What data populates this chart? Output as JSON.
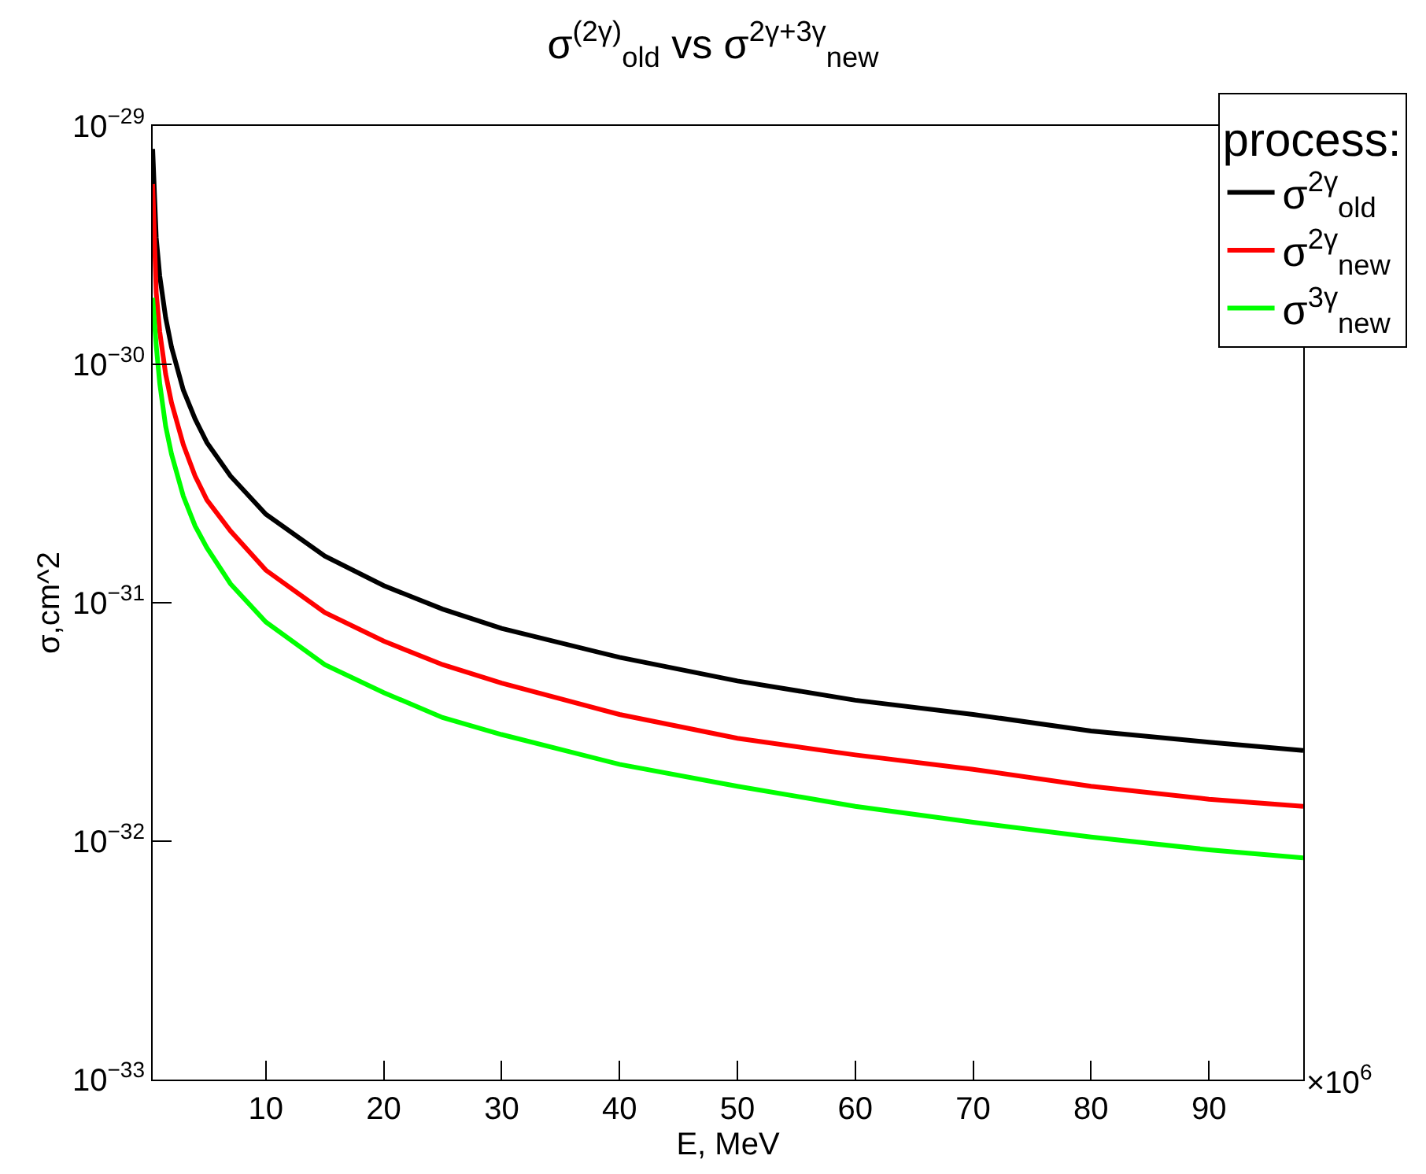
{
  "chart_data": {
    "type": "line",
    "title": "σ$^{(2γ)}$$_{old}$ vs σ$^{2γ+3γ}$$_{new}$",
    "xlabel": "E, MeV",
    "ylabel": "σ,cm^2",
    "legend_title": "process:",
    "annotations": [
      "×10$^{6}$"
    ],
    "x": [
      0.4,
      0.7,
      1,
      1.5,
      2,
      3,
      4,
      5,
      7,
      10,
      15,
      20,
      25,
      30,
      40,
      50,
      60,
      70,
      80,
      90,
      98
    ],
    "series": [
      {
        "name": "σ$^{2γ}$$_{old}$",
        "color": "#000000",
        "values": [
          8e-30,
          3.4e-30,
          2.35e-30,
          1.57e-30,
          1.18e-30,
          7.8e-31,
          5.9e-31,
          4.7e-31,
          3.4e-31,
          2.35e-31,
          1.57e-31,
          1.18e-31,
          9.4e-32,
          7.8e-32,
          5.9e-32,
          4.7e-32,
          3.9e-32,
          3.4e-32,
          2.9e-32,
          2.6e-32,
          2.4e-32
        ]
      },
      {
        "name": "σ$^{2γ}$$_{new}$",
        "color": "#ff0000",
        "values": [
          5.7e-30,
          2e-30,
          1.37e-30,
          9.1e-31,
          6.9e-31,
          4.6e-31,
          3.4e-31,
          2.7e-31,
          2e-31,
          1.37e-31,
          9.1e-32,
          6.9e-32,
          5.5e-32,
          4.6e-32,
          3.4e-32,
          2.7e-32,
          2.3e-32,
          2e-32,
          1.7e-32,
          1.5e-32,
          1.4e-32
        ]
      },
      {
        "name": "σ$^{3γ}$$_{new}$",
        "color": "#00ff00",
        "values": [
          1.9e-30,
          1.2e-30,
          8.3e-31,
          5.5e-31,
          4.2e-31,
          2.8e-31,
          2.1e-31,
          1.7e-31,
          1.2e-31,
          8.3e-32,
          5.5e-32,
          4.2e-32,
          3.3e-32,
          2.8e-32,
          2.1e-32,
          1.7e-32,
          1.4e-32,
          1.2e-32,
          1.04e-32,
          9.2e-33,
          8.5e-33
        ]
      }
    ],
    "log": "y",
    "xlim": [
      0.4,
      98
    ],
    "ylim": [
      1e-33,
      1e-29
    ],
    "xticks": [
      10,
      20,
      30,
      40,
      50,
      60,
      70,
      80,
      90
    ],
    "yticks": [
      {
        "value": 1e-33,
        "label": "10$^{−33}$"
      },
      {
        "value": 1e-32,
        "label": "10$^{−32}$"
      },
      {
        "value": 1e-31,
        "label": "10$^{−31}$"
      },
      {
        "value": 1e-30,
        "label": "10$^{−30}$"
      },
      {
        "value": 1e-29,
        "label": "10$^{−29}$"
      }
    ],
    "legend": "top right",
    "marker": "none",
    "line_style": "solid"
  }
}
